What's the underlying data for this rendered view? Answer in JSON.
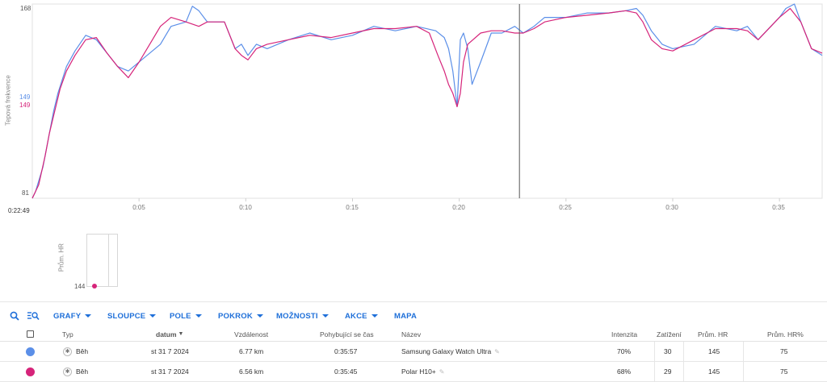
{
  "chart_data": {
    "type": "line",
    "ylabel": "Tepová frekvence",
    "ylim": [
      81,
      168
    ],
    "y_ticks": [
      "168",
      "81"
    ],
    "y_current_values": [
      {
        "label": "149",
        "color": "#5b8fe8"
      },
      {
        "label": "149",
        "color": "#d6247a"
      }
    ],
    "x_range_min": [
      0,
      37
    ],
    "x_tick_labels": [
      "0:05",
      "0:10",
      "0:15",
      "0:20",
      "0:25",
      "0:30",
      "0:35"
    ],
    "x_tick_minutes": [
      5,
      10,
      15,
      20,
      25,
      30,
      35
    ],
    "cursor_min": 22.82,
    "cursor_label": "0:22:49",
    "grid": false,
    "series": [
      {
        "name": "Samsung Galaxy Watch Ultra",
        "color": "#5b8fe8",
        "x": [
          0,
          0.15,
          0.5,
          0.8,
          1.0,
          1.2,
          1.6,
          2.0,
          2.5,
          3.0,
          3.5,
          4.0,
          4.5,
          5.5,
          6.0,
          6.5,
          7.2,
          7.5,
          7.8,
          8.2,
          9.0,
          9.5,
          9.8,
          10.1,
          10.5,
          11.0,
          12.0,
          13.0,
          14.0,
          15.0,
          16.0,
          17.0,
          18.0,
          18.9,
          19.3,
          19.5,
          19.7,
          19.9,
          20.05,
          20.2,
          20.4,
          20.6,
          21.0,
          21.5,
          22.0,
          22.6,
          23.0,
          23.5,
          24.0,
          25.0,
          26.0,
          27.0,
          27.8,
          28.3,
          28.6,
          29.0,
          29.5,
          30.0,
          31.0,
          32.0,
          33.0,
          33.5,
          34.0,
          35.0,
          35.3,
          35.7,
          36.0,
          36.5,
          37.0
        ],
        "y": [
          81,
          84,
          95,
          110,
          120,
          128,
          140,
          147,
          154,
          152,
          146,
          140,
          138,
          146,
          150,
          158,
          160,
          167,
          165,
          160,
          160,
          148,
          150,
          145,
          150,
          148,
          152,
          155,
          152,
          154,
          158,
          156,
          158,
          156,
          153,
          148,
          138,
          122,
          152,
          155,
          148,
          132,
          142,
          155,
          155,
          158,
          155,
          158,
          162,
          162,
          164,
          164,
          165,
          166,
          163,
          156,
          150,
          148,
          150,
          158,
          156,
          158,
          152,
          162,
          166,
          168,
          160,
          148,
          145
        ]
      },
      {
        "name": "Polar H10+",
        "color": "#d6247a",
        "x": [
          0,
          0.3,
          0.6,
          0.8,
          1.0,
          1.3,
          1.6,
          2.0,
          2.5,
          3.0,
          3.5,
          4.0,
          4.5,
          5.0,
          5.5,
          6.0,
          6.5,
          7.2,
          7.8,
          8.2,
          9.0,
          9.5,
          9.8,
          10.1,
          10.5,
          11.0,
          12.0,
          13.0,
          14.0,
          15.0,
          16.0,
          17.0,
          18.0,
          18.6,
          19.0,
          19.3,
          19.5,
          19.7,
          19.9,
          20.05,
          20.2,
          20.4,
          21.0,
          21.5,
          22.0,
          22.6,
          23.0,
          23.5,
          24.0,
          25.0,
          26.0,
          27.0,
          27.8,
          28.3,
          28.6,
          29.0,
          29.5,
          30.0,
          31.0,
          32.0,
          33.0,
          33.5,
          34.0,
          35.0,
          35.5,
          36.0,
          36.5,
          37.0
        ],
        "y": [
          81,
          87,
          100,
          110,
          118,
          130,
          138,
          145,
          152,
          153,
          146,
          140,
          135,
          142,
          150,
          158,
          162,
          160,
          158,
          160,
          160,
          148,
          145,
          143,
          148,
          150,
          152,
          154,
          153,
          155,
          157,
          157,
          158,
          155,
          145,
          138,
          132,
          128,
          122,
          128,
          142,
          150,
          155,
          156,
          156,
          155,
          155,
          157,
          160,
          162,
          163,
          164,
          165,
          164,
          160,
          152,
          148,
          147,
          152,
          157,
          157,
          156,
          152,
          162,
          166,
          160,
          148,
          146
        ]
      }
    ]
  },
  "mini_chart": {
    "axis_title": "Prům. HR",
    "value_label": "144",
    "dot_color": "#d6247a"
  },
  "toolbar": {
    "search_icon": "search-icon",
    "zoom_icon": "zoom-icon",
    "menus": [
      "GRAFY",
      "SLOUPCE",
      "POLE",
      "POKROK",
      "MOŽNOSTI",
      "AKCE",
      "MAPA"
    ],
    "accent": "#1e6fd9"
  },
  "table": {
    "headers": {
      "typ": "Typ",
      "datum": "datum",
      "vzdalenost": "Vzdálenost",
      "cas": "Pohybující se čas",
      "nazev": "Název",
      "intenzita": "Intenzita",
      "zatizeni": "Zatížení",
      "prum_hr": "Prům. HR",
      "prum_hr_pct": "Prům. HR%"
    },
    "rows": [
      {
        "color": "#5b8fe8",
        "type": "Běh",
        "type_icon": "running-icon",
        "date": "st 31 7 2024",
        "distance": "6.77 km",
        "time": "0:35:57",
        "name": "Samsung Galaxy Watch Ultra",
        "intensity": "70%",
        "load": "30",
        "avg_hr": "145",
        "avg_hr_pct": "75"
      },
      {
        "color": "#d6247a",
        "type": "Běh",
        "type_icon": "running-icon",
        "date": "st 31 7 2024",
        "distance": "6.56 km",
        "time": "0:35:45",
        "name": "Polar H10+",
        "intensity": "68%",
        "load": "29",
        "avg_hr": "145",
        "avg_hr_pct": "75"
      }
    ]
  }
}
